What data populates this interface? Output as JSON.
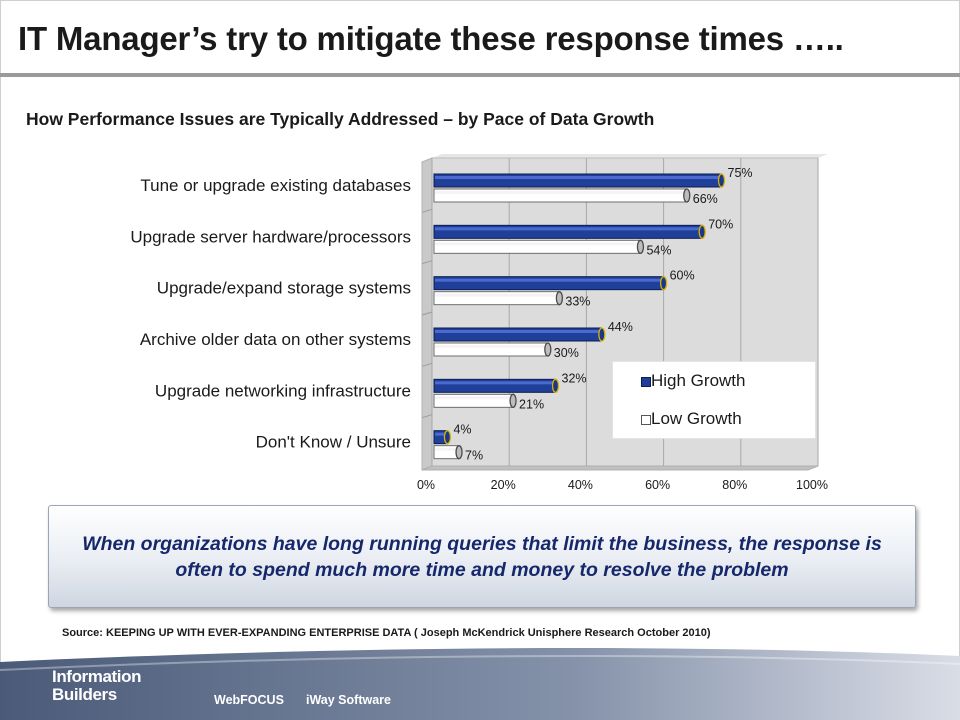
{
  "slide": {
    "title": "IT Manager’s try to mitigate these response times …..",
    "subtitle": "How Performance Issues are Typically Addressed – by Pace of Data Growth",
    "callout": "When organizations have long running queries that limit the business, the response is often to spend much more time and money to resolve the problem",
    "source": "Source: KEEPING UP WITH EVER-EXPANDING ENTERPRISE DATA ( Joseph McKendrick  Unisphere Research October 2010)"
  },
  "footer": {
    "logo_line1": "Information",
    "logo_line2": "Builders",
    "product1": "WebFOCUS",
    "product2": "iWay Software"
  },
  "chart_data": {
    "type": "bar",
    "orientation": "horizontal",
    "title": "How Performance Issues are Typically Addressed – by Pace of Data Growth",
    "categories": [
      "Tune or upgrade existing databases",
      "Upgrade server hardware/processors",
      "Upgrade/expand storage systems",
      "Archive older data on other systems",
      "Upgrade networking infrastructure",
      "Don't Know / Unsure"
    ],
    "series": [
      {
        "name": "High Growth",
        "values": [
          75,
          70,
          60,
          44,
          32,
          4
        ],
        "labels": [
          "75%",
          "70%",
          "60%",
          "44%",
          "32%",
          "4%"
        ],
        "color": "#1f3f99"
      },
      {
        "name": "Low Growth",
        "values": [
          66,
          54,
          33,
          30,
          21,
          7
        ],
        "labels": [
          "66%",
          "54%",
          "33%",
          "30%",
          "21%",
          "7%"
        ],
        "color": "#ffffff"
      }
    ],
    "xlim": [
      0,
      100
    ],
    "xticks": [
      "0%",
      "20%",
      "40%",
      "60%",
      "80%",
      "100%"
    ],
    "xtick_values": [
      0,
      20,
      40,
      60,
      80,
      100
    ],
    "legend_position": "bottom-right",
    "grid": true,
    "style": "3d-cylinder"
  }
}
